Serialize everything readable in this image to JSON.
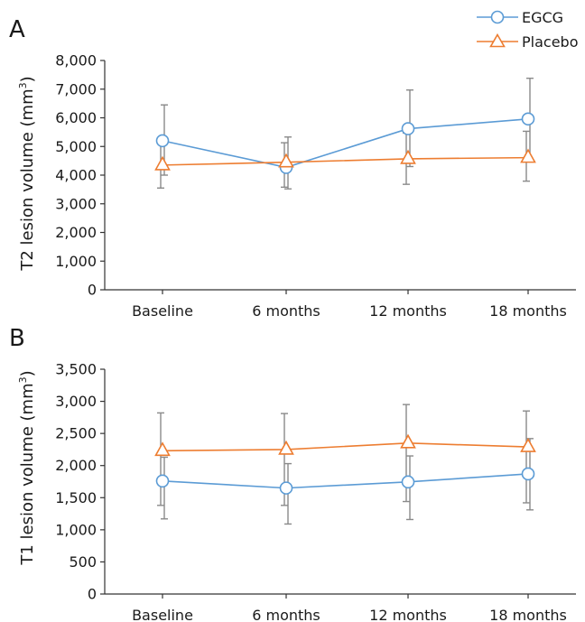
{
  "legend": [
    {
      "name": "EGCG",
      "color": "#5b9bd5",
      "marker": "circle"
    },
    {
      "name": "Placebo",
      "color": "#ed7d31",
      "marker": "triangle"
    }
  ],
  "chart_data": [
    {
      "panel": "A",
      "type": "line",
      "ylabel_main": "T2 lesion volume (mm",
      "ylabel_sup": "3",
      "ylabel_close": ")",
      "categories": [
        "Baseline",
        "6 months",
        "12 months",
        "18 months"
      ],
      "ylim": [
        0,
        8000
      ],
      "yticks": [
        0,
        1000,
        2000,
        3000,
        4000,
        5000,
        6000,
        7000,
        8000
      ],
      "ytick_labels": [
        "0",
        "1,000",
        "2,000",
        "3,000",
        "4,000",
        "5,000",
        "6,000",
        "7,000",
        "8,000"
      ],
      "grid": false,
      "legend_position": "top-right",
      "series": [
        {
          "name": "EGCG",
          "color": "#5b9bd5",
          "marker": "circle",
          "values": [
            5200,
            4270,
            5620,
            5960
          ],
          "err_low": [
            4000,
            3520,
            4300,
            4520
          ],
          "err_high": [
            6450,
            5330,
            6970,
            7380
          ]
        },
        {
          "name": "Placebo",
          "color": "#ed7d31",
          "marker": "triangle",
          "values": [
            4350,
            4450,
            4570,
            4610
          ],
          "err_low": [
            3550,
            3580,
            3680,
            3790
          ],
          "err_high": [
            5150,
            5130,
            5470,
            5530
          ]
        }
      ]
    },
    {
      "panel": "B",
      "type": "line",
      "ylabel_main": "T1 lesion volume (mm",
      "ylabel_sup": "3",
      "ylabel_close": ")",
      "categories": [
        "Baseline",
        "6 months",
        "12 months",
        "18 months"
      ],
      "ylim": [
        0,
        3500
      ],
      "yticks": [
        0,
        500,
        1000,
        1500,
        2000,
        2500,
        3000,
        3500
      ],
      "ytick_labels": [
        "0",
        "500",
        "1,000",
        "1,500",
        "2,000",
        "2,500",
        "3,000",
        "3,500"
      ],
      "grid": false,
      "series": [
        {
          "name": "EGCG",
          "color": "#5b9bd5",
          "marker": "circle",
          "values": [
            1760,
            1650,
            1745,
            1870
          ],
          "err_low": [
            1170,
            1090,
            1160,
            1310
          ],
          "err_high": [
            2130,
            2030,
            2150,
            2420
          ]
        },
        {
          "name": "Placebo",
          "color": "#ed7d31",
          "marker": "triangle",
          "values": [
            2230,
            2250,
            2350,
            2290
          ],
          "err_low": [
            1380,
            1380,
            1440,
            1420
          ],
          "err_high": [
            2820,
            2810,
            2950,
            2850
          ]
        }
      ]
    }
  ]
}
